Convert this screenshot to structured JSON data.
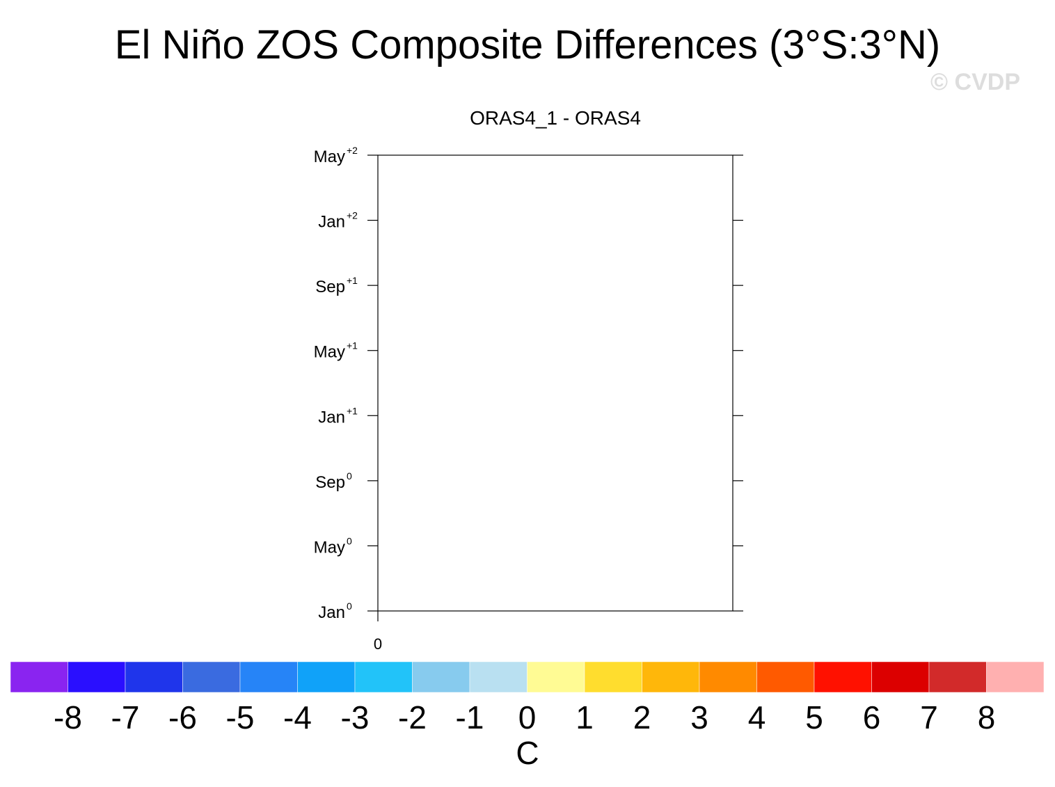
{
  "chart_data": {
    "type": "hovmoller",
    "title": "El Niño ZOS Composite Differences (3°S:3°N)",
    "watermark": "© CVDP",
    "subtitle": "ORAS4_1 - ORAS4",
    "ylim": [
      0,
      28
    ],
    "yticks": [
      {
        "value": 0,
        "label": "Jan",
        "sup": "0"
      },
      {
        "value": 4,
        "label": "May",
        "sup": "0"
      },
      {
        "value": 8,
        "label": "Sep",
        "sup": "0"
      },
      {
        "value": 12,
        "label": "Jan",
        "sup": "+1"
      },
      {
        "value": 16,
        "label": "May",
        "sup": "+1"
      },
      {
        "value": 20,
        "label": "Sep",
        "sup": "+1"
      },
      {
        "value": 24,
        "label": "Jan",
        "sup": "+2"
      },
      {
        "value": 28,
        "label": "May",
        "sup": "+2"
      }
    ],
    "xticks": [
      0
    ],
    "colorbar": {
      "label": "C",
      "levels": [
        -8,
        -7,
        -6,
        -5,
        -4,
        -3,
        -2,
        -1,
        0,
        1,
        2,
        3,
        4,
        5,
        6,
        7,
        8
      ],
      "colors": [
        "#8a24f0",
        "#2a0fff",
        "#1f35eb",
        "#3a6be0",
        "#2684f7",
        "#10a2f9",
        "#22c3f9",
        "#87cbee",
        "#b9e0f1",
        "#fffb94",
        "#ffdd2e",
        "#ffb70a",
        "#ff8a00",
        "#ff5a00",
        "#ff1100",
        "#dc0000",
        "#d22a2a",
        "#ffb0b0"
      ]
    }
  }
}
